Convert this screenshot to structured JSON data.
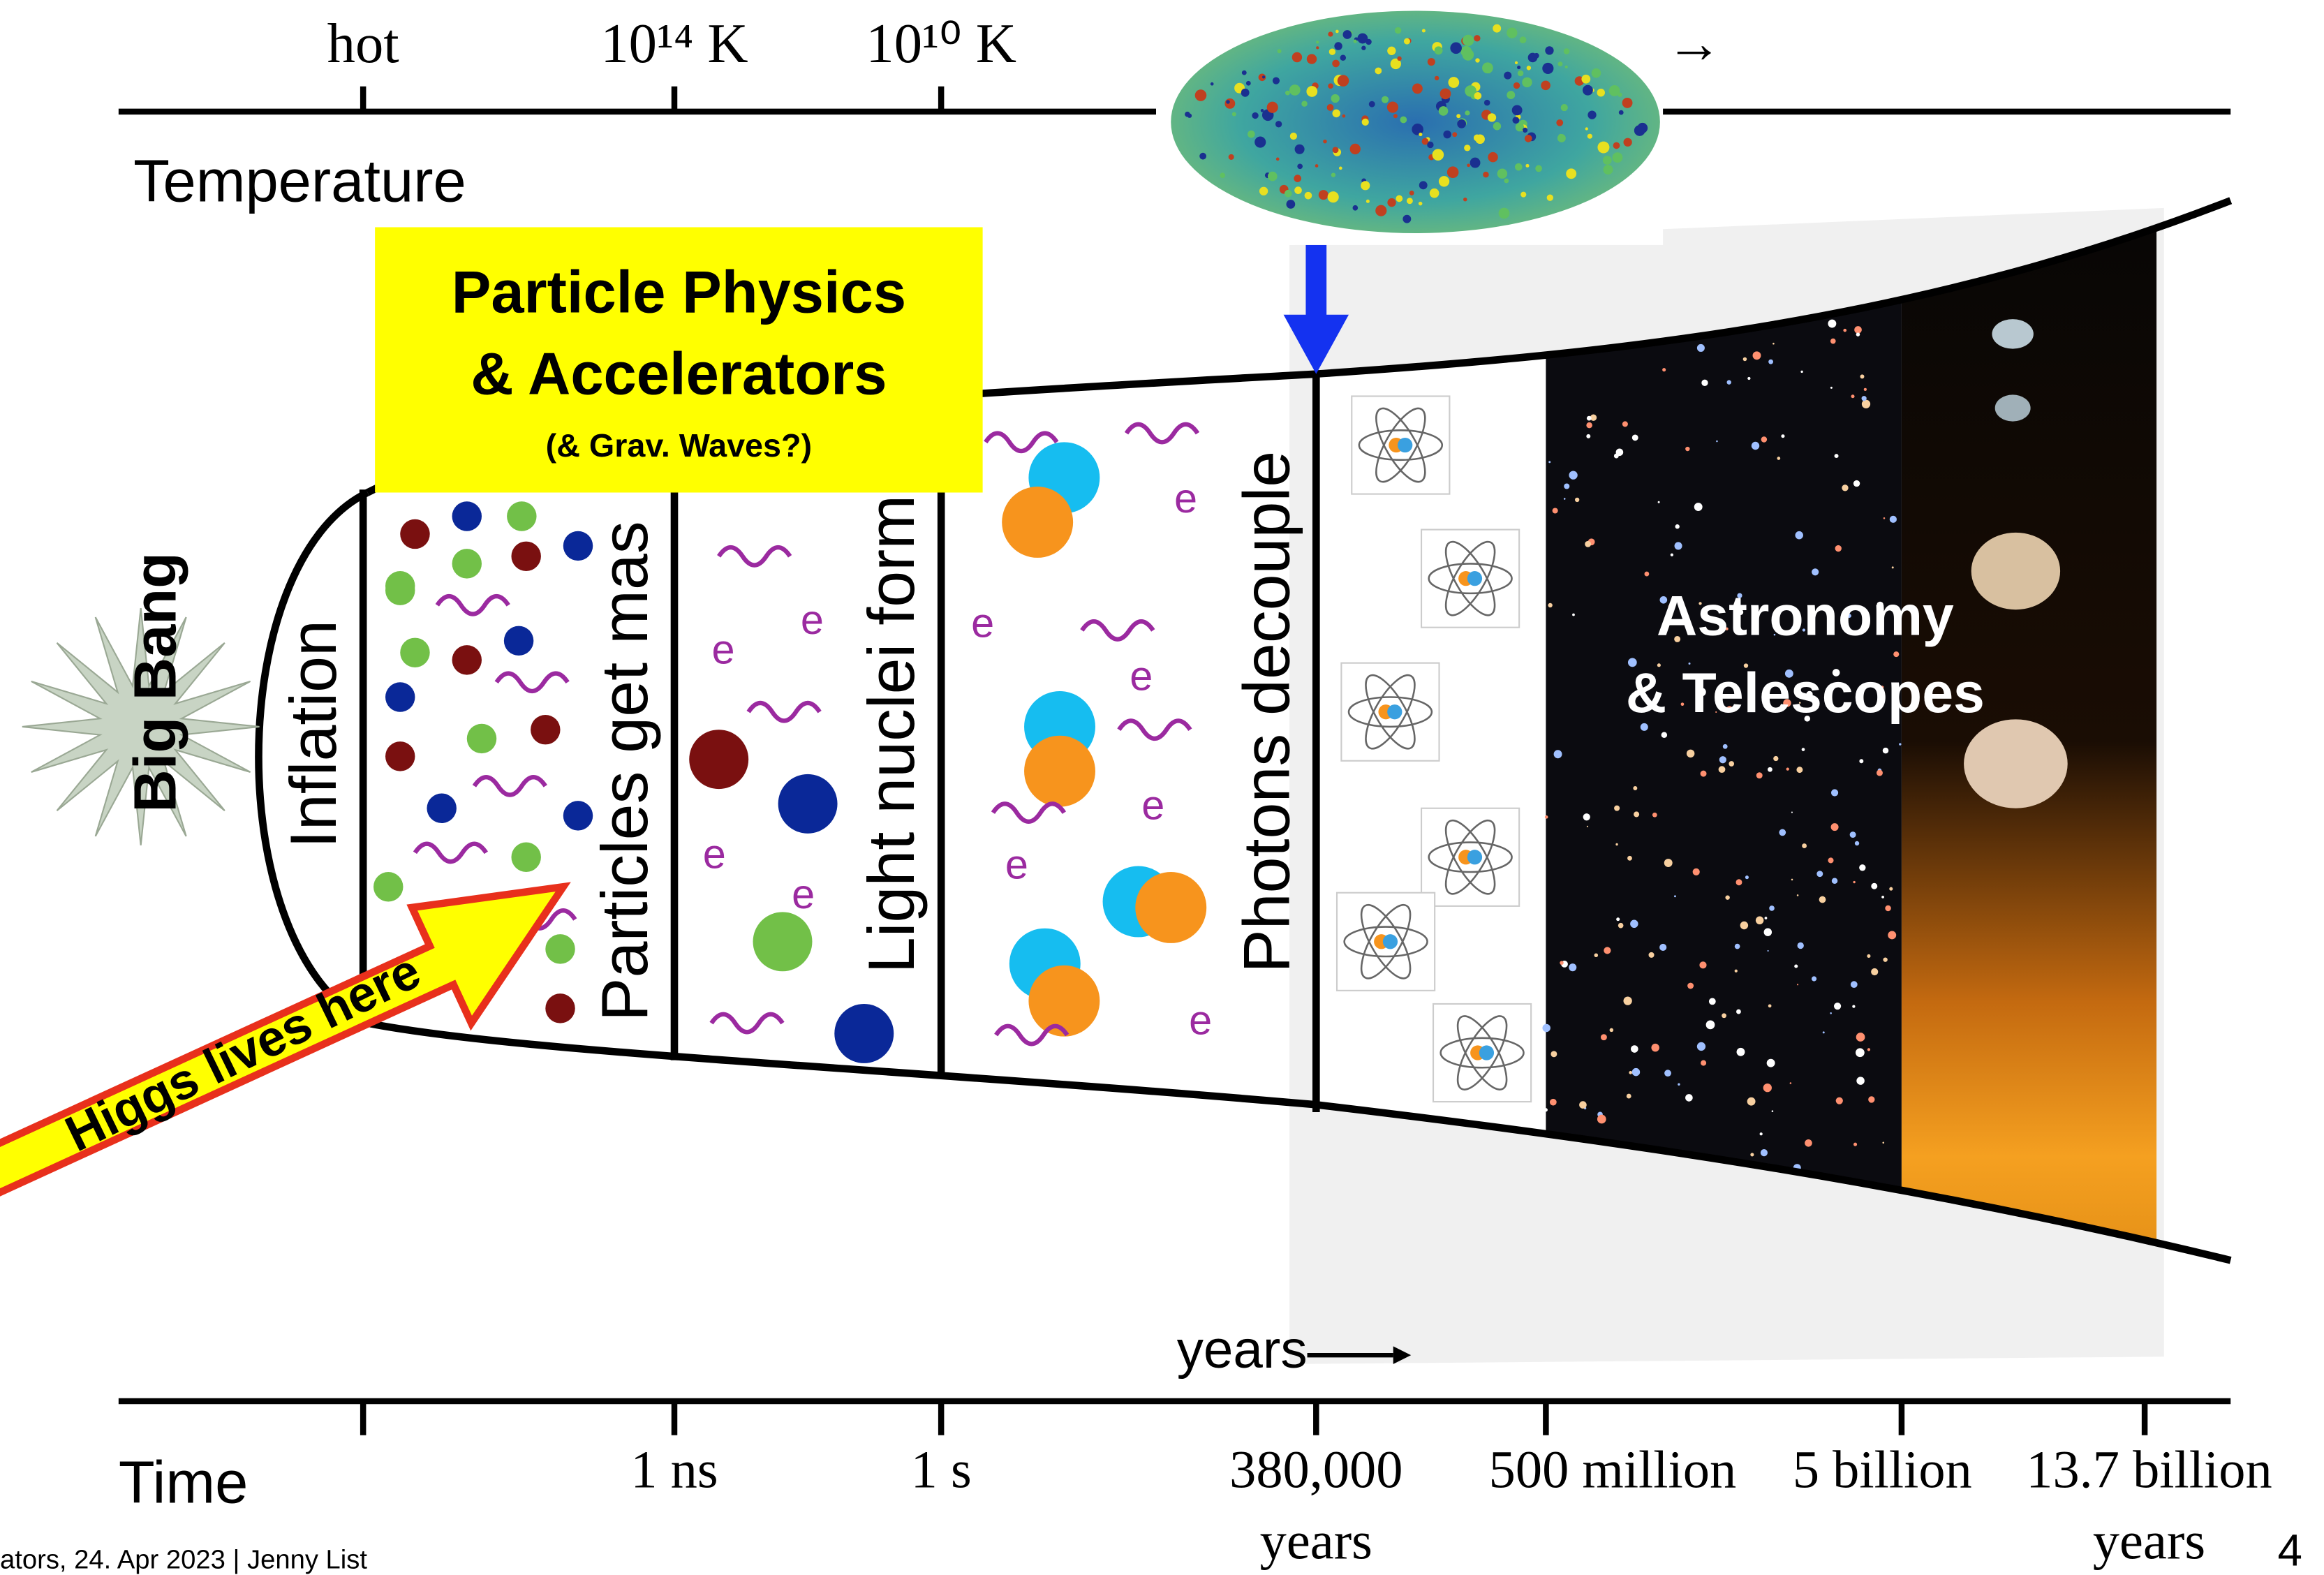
{
  "temperature_axis": {
    "label": "Temperature",
    "ticks": [
      "hot",
      "10¹⁴ K",
      "10¹⁰ K"
    ],
    "arrow": "→"
  },
  "time_axis": {
    "label": "Time",
    "years_label": "years",
    "ticks": [
      "1 ns",
      "1 s",
      "380,000",
      "500 million",
      "5 billion",
      "13.7 billion"
    ],
    "years_under": [
      "years",
      "years"
    ]
  },
  "big_bang": "Big Bang",
  "eras": [
    "Inflation",
    "Particles get mas",
    "Light nuclei form",
    "Photons decouple"
  ],
  "particle_physics_box": {
    "line1": "Particle Physics",
    "line2": "& Accelerators",
    "line3": "(& Grav. Waves?)"
  },
  "astronomy": {
    "line1": "Astronomy",
    "line2": "& Telescopes"
  },
  "higgs_arrow": "Higgs lives here",
  "electron_label": "e",
  "footer": "ators, 24. Apr 2023  |  Jenny List",
  "page_number": "4"
}
